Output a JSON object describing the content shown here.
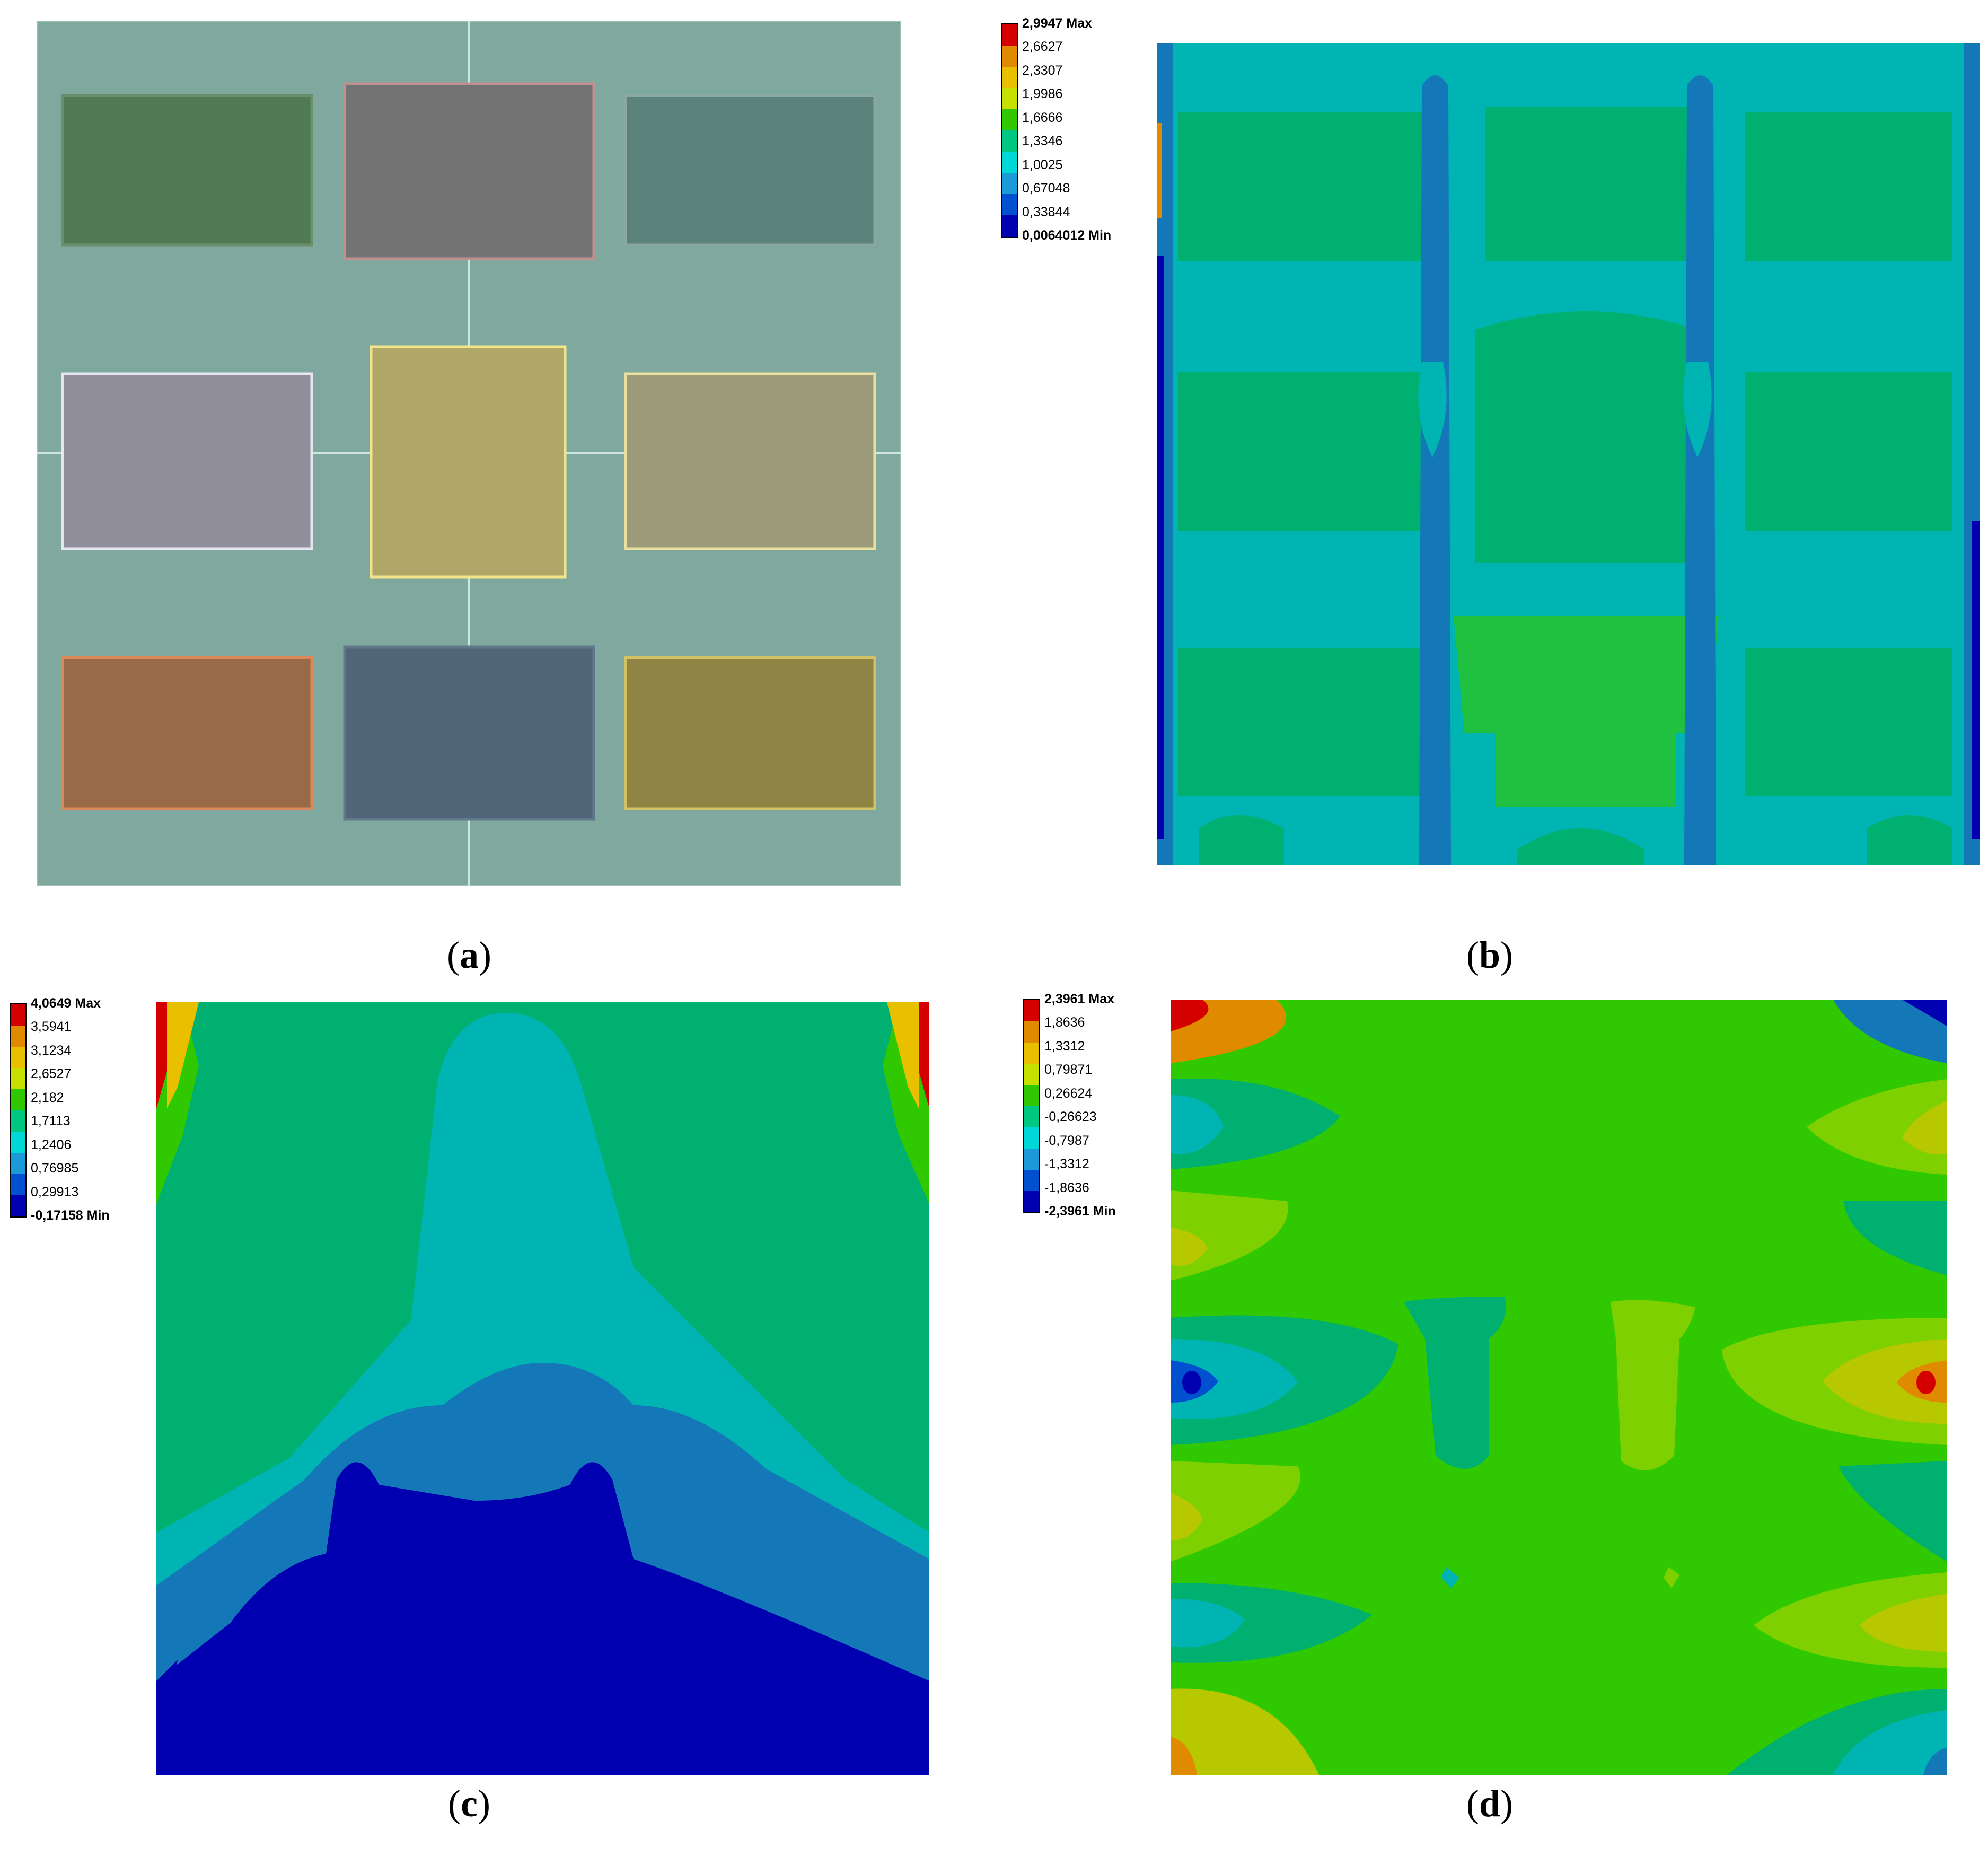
{
  "captions": {
    "a": "a",
    "b": "b",
    "c": "c",
    "d": "d"
  },
  "legend_b": [
    "2,9947 Max",
    "2,6627",
    "2,3307",
    "1,9986",
    "1,6666",
    "1,3346",
    "1,0025",
    "0,67048",
    "0,33844",
    "0,0064012 Min"
  ],
  "legend_c": [
    "4,0649 Max",
    "3,5941",
    "3,1234",
    "2,6527",
    "2,182",
    "1,7113",
    "1,2406",
    "0,76985",
    "0,29913",
    "-0,17158 Min"
  ],
  "legend_d": [
    "2,3961 Max",
    "1,8636",
    "1,3312",
    "0,79871",
    "0,26624",
    "-0,26623",
    "-0,7987",
    "-1,3312",
    "-1,8636",
    "-2,3961 Min"
  ],
  "scale_colors": [
    "#d40000",
    "#e08a00",
    "#e8c000",
    "#c8e000",
    "#30c800",
    "#00c880",
    "#00d8d8",
    "#1a9ad8",
    "#0050d0",
    "#0000b0"
  ],
  "layout_a": {
    "background": "#7fa89e",
    "rectangles": [
      {
        "name": "rect-top-left",
        "color": "#507b52",
        "border": "#6a8f6c"
      },
      {
        "name": "rect-top-center",
        "color": "#737373",
        "border": "#c09090"
      },
      {
        "name": "rect-top-right",
        "color": "#5c837b",
        "border": "#8aa7a0"
      },
      {
        "name": "rect-mid-left",
        "color": "#918f9c",
        "border": "#e6e6f0"
      },
      {
        "name": "rect-mid-center",
        "color": "#b0a668",
        "border": "#f2e48a"
      },
      {
        "name": "rect-mid-right",
        "color": "#9b9b7a",
        "border": "#e9e0a0"
      },
      {
        "name": "rect-bot-left",
        "color": "#996a48",
        "border": "#d9885a"
      },
      {
        "name": "rect-bot-center",
        "color": "#4f6578",
        "border": "#60788a"
      },
      {
        "name": "rect-bot-right",
        "color": "#8f8444",
        "border": "#d2c266"
      }
    ]
  }
}
